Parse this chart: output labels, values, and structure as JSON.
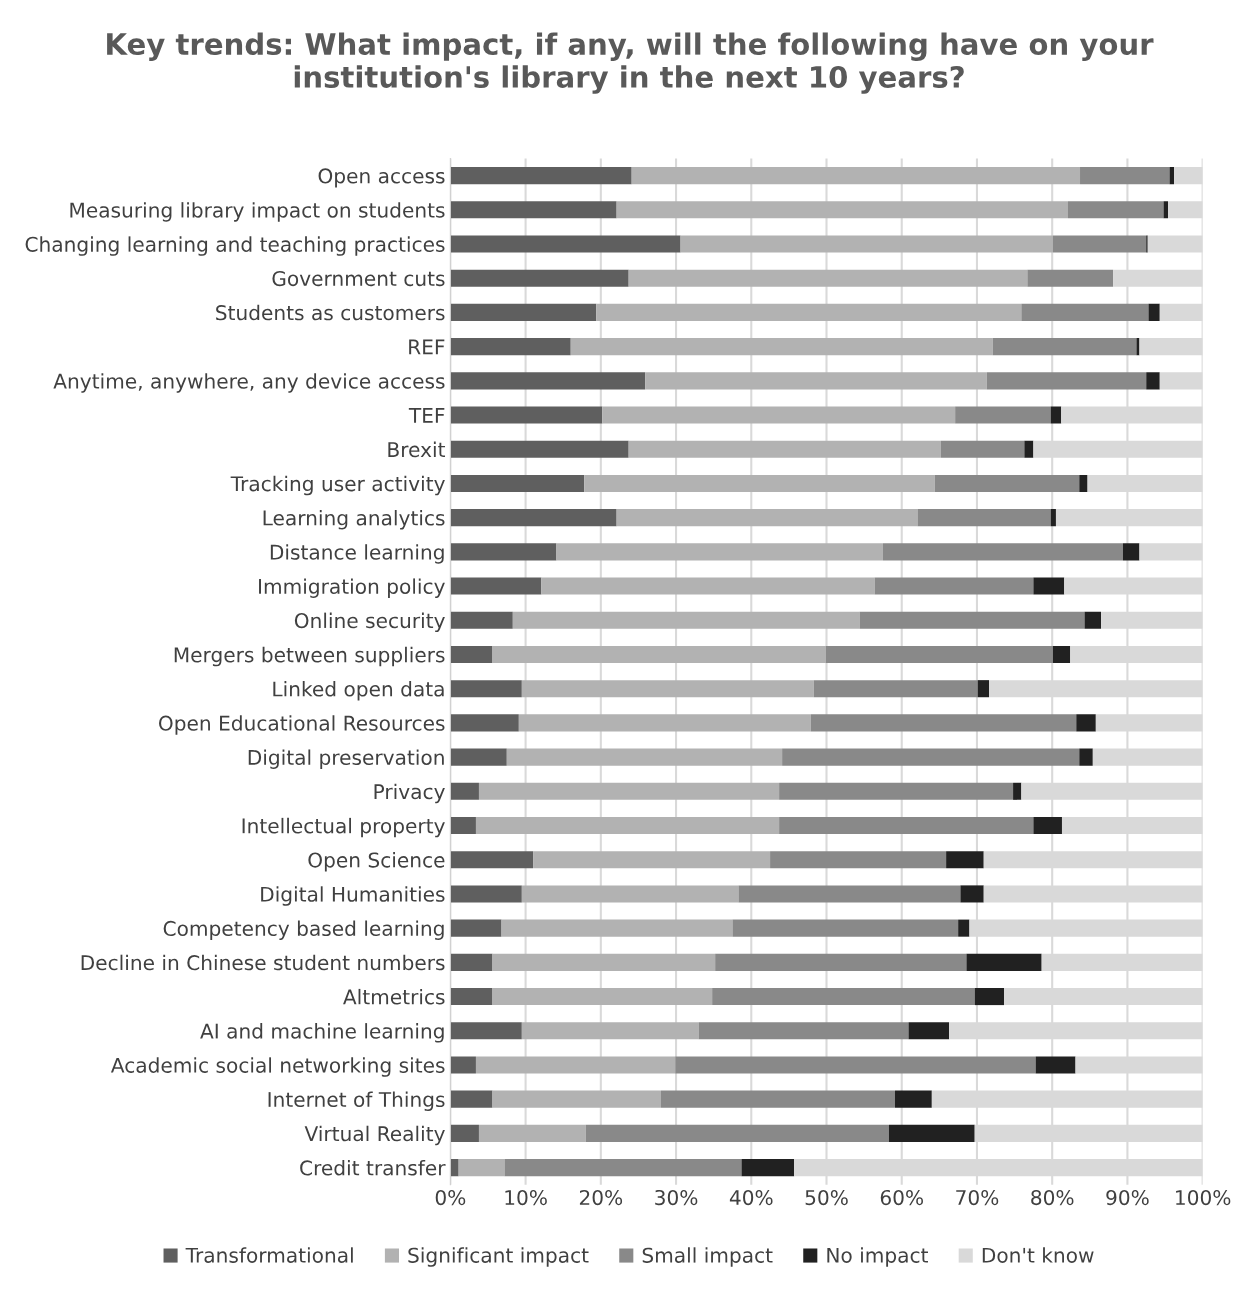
{
  "chart_data": {
    "type": "bar",
    "orientation": "horizontal",
    "stacked": true,
    "title": "Key trends: What impact, if any, will the following have on your institution's library in the next 10 years?",
    "categories": [
      "Open access",
      "Measuring library impact on students",
      "Changing learning and teaching practices",
      "Government cuts",
      "Students as customers",
      "REF",
      "Anytime, anywhere, any device access",
      "TEF",
      "Brexit",
      "Tracking user activity",
      "Learning analytics",
      "Distance learning",
      "Immigration policy",
      "Online security",
      "Mergers between suppliers",
      "Linked open data",
      "Open Educational Resources",
      "Digital preservation",
      "Privacy",
      "Intellectual property",
      "Open Science",
      "Digital Humanities",
      "Competency based learning",
      "Decline in Chinese student numbers",
      "Altmetrics",
      "AI and machine learning",
      "Academic social networking sites",
      "Internet of Things",
      "Virtual Reality",
      "Credit transfer"
    ],
    "series": [
      {
        "name": "Transformational",
        "color": "#5f5f5f",
        "values": [
          24.1,
          22.1,
          30.6,
          23.7,
          19.4,
          16.0,
          25.9,
          20.2,
          23.7,
          17.8,
          22.1,
          14.1,
          12.1,
          8.3,
          5.6,
          9.5,
          9.1,
          7.5,
          3.8,
          3.4,
          11.0,
          9.5,
          6.8,
          5.6,
          5.6,
          9.5,
          3.4,
          5.6,
          3.8,
          1.1
        ]
      },
      {
        "name": "Significant impact",
        "color": "#b2b2b2",
        "values": [
          59.6,
          60.0,
          49.5,
          53.0,
          56.5,
          56.1,
          45.4,
          46.9,
          41.5,
          46.6,
          40.0,
          43.4,
          44.3,
          46.1,
          44.3,
          38.8,
          38.8,
          36.6,
          39.9,
          40.3,
          31.5,
          28.8,
          30.7,
          29.6,
          29.2,
          23.5,
          26.5,
          22.4,
          14.2,
          6.1
        ]
      },
      {
        "name": "Small impact",
        "color": "#898989",
        "values": [
          11.9,
          12.7,
          12.4,
          11.4,
          16.9,
          19.1,
          21.2,
          12.7,
          11.1,
          19.2,
          17.7,
          31.9,
          21.1,
          29.9,
          30.2,
          21.8,
          35.3,
          39.5,
          31.1,
          33.8,
          23.4,
          29.5,
          30.0,
          33.4,
          34.9,
          27.9,
          47.9,
          31.1,
          40.3,
          31.5
        ]
      },
      {
        "name": "No impact",
        "color": "#212121",
        "values": [
          0.6,
          0.6,
          0.2,
          0,
          1.5,
          0.4,
          1.8,
          1.4,
          1.2,
          1.1,
          0.7,
          2.2,
          4.1,
          2.2,
          2.3,
          1.5,
          2.6,
          1.8,
          1.1,
          3.8,
          5.0,
          3.1,
          1.5,
          10.0,
          3.9,
          5.4,
          5.3,
          4.9,
          11.4,
          7.0
        ]
      },
      {
        "name": "Don't know",
        "color": "#d9d9d9",
        "values": [
          3.8,
          4.6,
          7.3,
          11.9,
          5.7,
          8.4,
          5.7,
          18.8,
          22.5,
          15.3,
          19.5,
          8.4,
          18.4,
          13.5,
          17.6,
          28.4,
          14.2,
          14.6,
          24.1,
          18.7,
          29.1,
          29.1,
          31.0,
          21.4,
          26.4,
          33.7,
          16.9,
          36.0,
          30.3,
          54.3
        ]
      }
    ],
    "xlim": [
      0,
      100
    ],
    "xticks": [
      {
        "value": 0,
        "label": "0%"
      },
      {
        "value": 10,
        "label": "10%"
      },
      {
        "value": 20,
        "label": "20%"
      },
      {
        "value": 30,
        "label": "30%"
      },
      {
        "value": 40,
        "label": "40%"
      },
      {
        "value": 50,
        "label": "50%"
      },
      {
        "value": 60,
        "label": "60%"
      },
      {
        "value": 70,
        "label": "70%"
      },
      {
        "value": 80,
        "label": "80%"
      },
      {
        "value": 90,
        "label": "90%"
      },
      {
        "value": 100,
        "label": "100%"
      }
    ],
    "grid": "x",
    "legend": "bottom"
  }
}
